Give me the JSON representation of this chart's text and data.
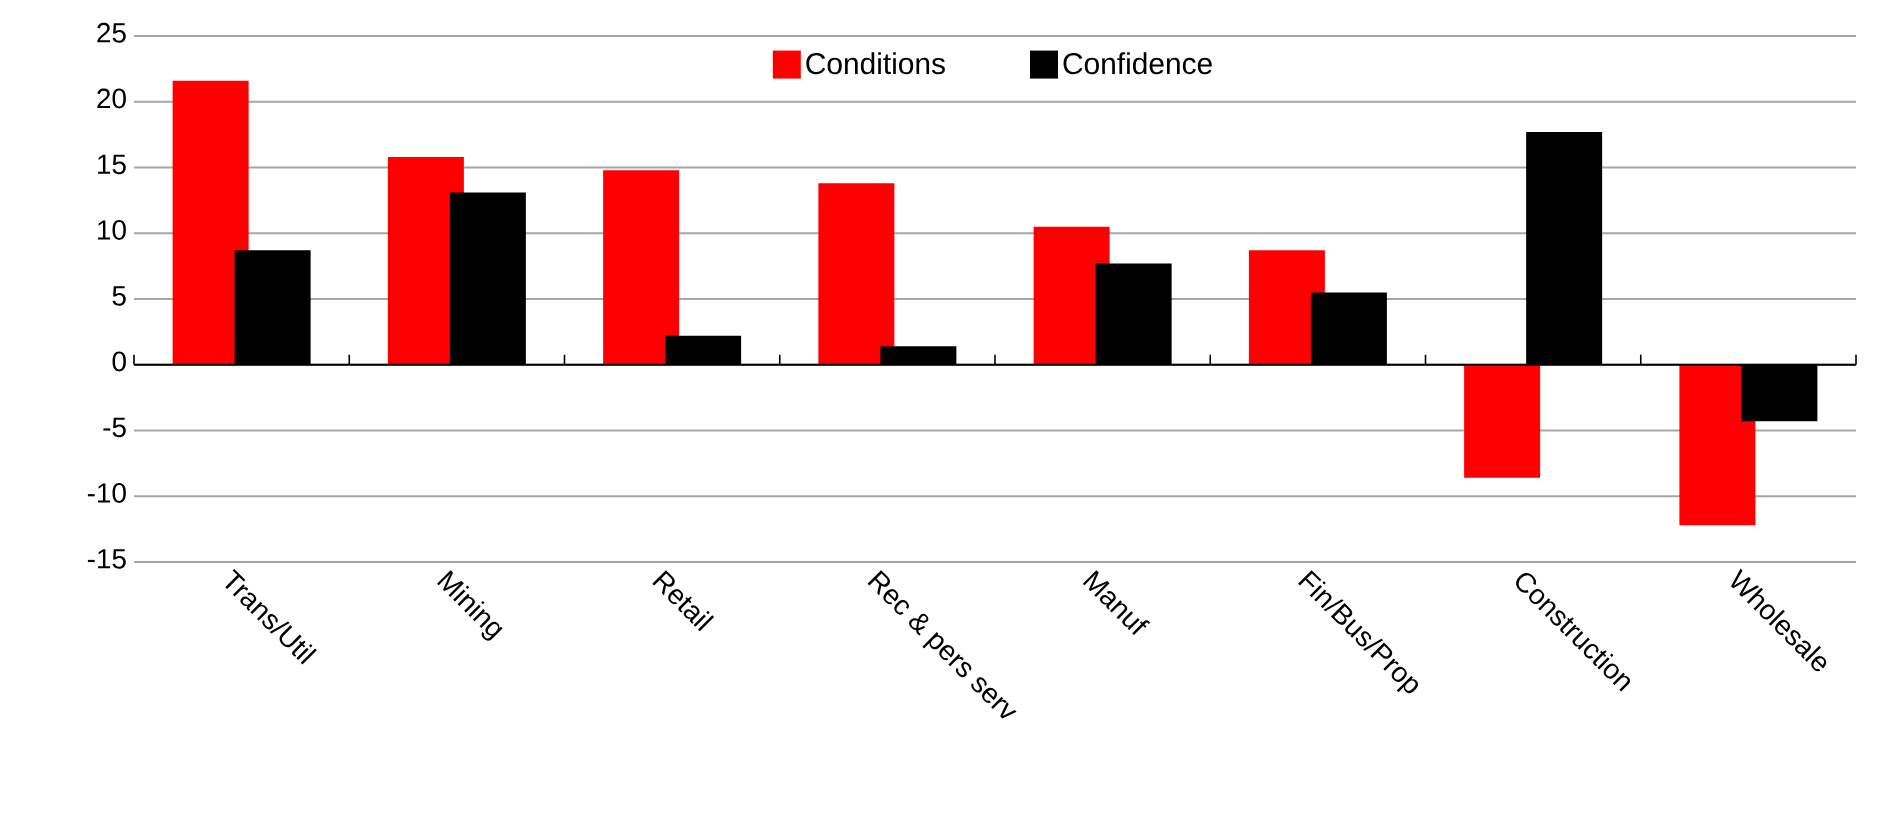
{
  "chart_data": {
    "type": "bar",
    "categories": [
      "Trans/Util",
      "Mining",
      "Retail",
      "Rec & pers serv",
      "Manuf",
      "Fin/Bus/Prop",
      "Construction",
      "Wholesale"
    ],
    "series": [
      {
        "name": "Conditions",
        "color": "#ff0000",
        "values": [
          21.6,
          15.8,
          14.8,
          13.8,
          10.5,
          8.7,
          -8.6,
          -12.2
        ]
      },
      {
        "name": "Confidence",
        "color": "#000000",
        "values": [
          8.7,
          13.1,
          2.2,
          1.4,
          7.7,
          5.5,
          17.7,
          -4.3
        ]
      }
    ],
    "ylim": [
      -15,
      25
    ],
    "yticks": [
      -15,
      -10,
      -5,
      0,
      5,
      10,
      15,
      20,
      25
    ],
    "grid": "y",
    "legend": "top"
  }
}
